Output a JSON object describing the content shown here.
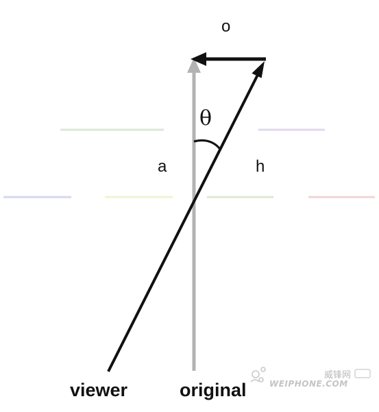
{
  "labels": {
    "opposite": "o",
    "theta": "θ",
    "adjacent": "a",
    "hypotenuse": "h",
    "viewer": "viewer",
    "original": "original"
  },
  "watermark": {
    "cn": "威锋网",
    "en": "WEIPHONE.COM"
  },
  "colors": {
    "ink": "#111111",
    "original_arrow": "#b3b3b3",
    "guide_green": "#dbe9d6",
    "guide_purple": "#e0d9ec",
    "guide_blue": "#d4d8ef",
    "guide_yellow": "#f1f3d2",
    "guide_red": "#f2d3d3"
  }
}
